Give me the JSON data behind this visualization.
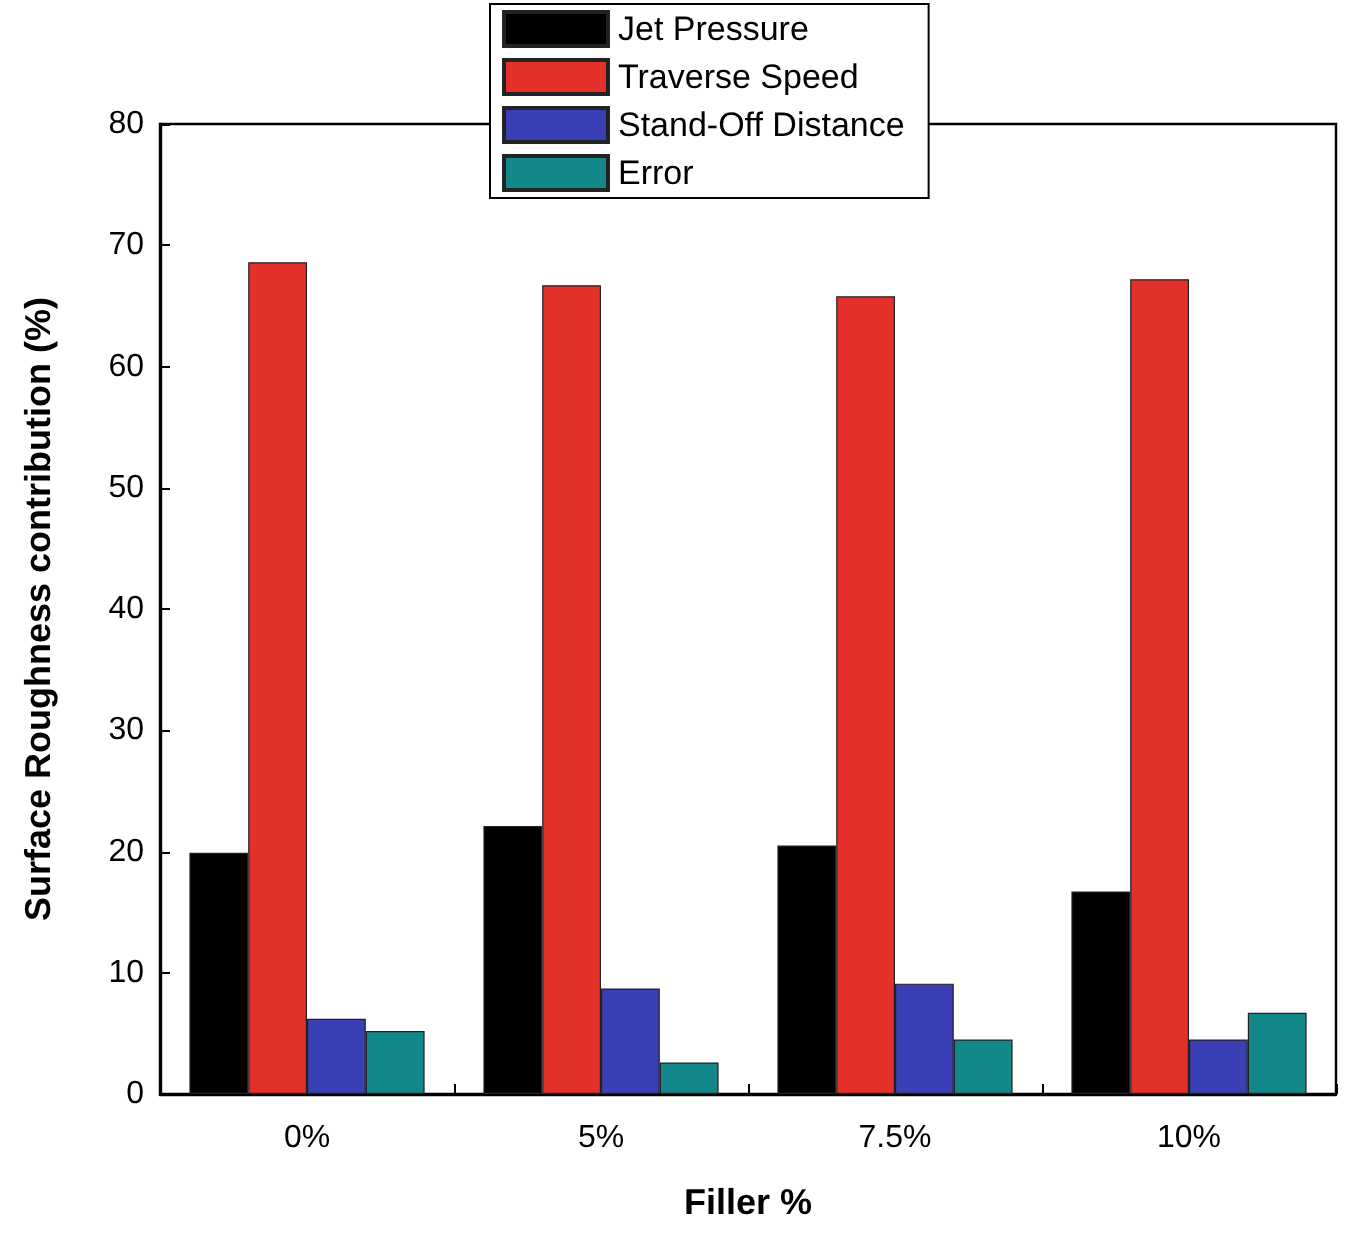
{
  "chart_data": {
    "type": "bar",
    "xlabel": "Filler %",
    "ylabel": "Surface Roughness contribution (%)",
    "categories": [
      "0%",
      "5%",
      "7.5%",
      "10%"
    ],
    "series": [
      {
        "name": "Jet Pressure",
        "color": "#000000",
        "values": [
          19.9,
          22.1,
          20.5,
          16.7
        ]
      },
      {
        "name": "Traverse Speed",
        "color": "#e3302a",
        "values": [
          68.6,
          66.7,
          65.8,
          67.2
        ]
      },
      {
        "name": "Stand-Off Distance",
        "color": "#3a3fb5",
        "values": [
          6.2,
          8.7,
          9.1,
          4.5
        ]
      },
      {
        "name": "Error",
        "color": "#13888a",
        "values": [
          5.2,
          2.6,
          4.5,
          6.7
        ]
      }
    ],
    "ylim": [
      0,
      80
    ],
    "yticks": [
      0,
      10,
      20,
      30,
      40,
      50,
      60,
      70,
      80
    ],
    "grid": false,
    "legend": "top"
  }
}
